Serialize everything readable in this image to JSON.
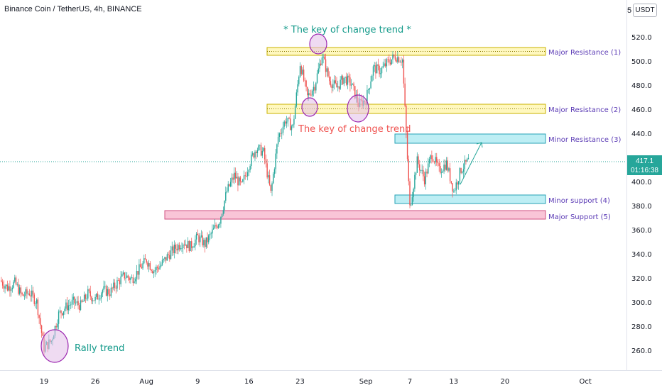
{
  "header": {
    "symbol_title": "Binance Coin / TetherUS, 4h, BINANCE",
    "currency": "USDT",
    "scale_fragment": "5"
  },
  "last_price": {
    "value": "417.1",
    "countdown": "01:16:38",
    "color": "#26a69a"
  },
  "colors": {
    "up": "#26a69a",
    "down": "#ef5350",
    "resistance_fill": "#fff59d",
    "resistance_border": "#c9b200",
    "minor_fill": "#b2ebf2",
    "minor_border": "#26a2b6",
    "support_fill": "#f8bbd0",
    "support_border": "#d05080",
    "level_label": "#5b3bb5",
    "annotation_teal": "#139a8a",
    "annotation_red": "#ef5350",
    "circle_stroke": "#9c27b0",
    "circle_fill": "#e1bee7"
  },
  "chart_data": {
    "type": "candlestick",
    "title": "Binance Coin / TetherUS, 4h, BINANCE",
    "x_tick_labels": [
      "19",
      "26",
      "Aug",
      "9",
      "16",
      "23",
      "Sep",
      "7",
      "13",
      "20",
      "Oct"
    ],
    "y_tick_labels": [
      "520.0",
      "500.0",
      "480.0",
      "460.0",
      "440.0",
      "420.0",
      "400.0",
      "380.0",
      "360.0",
      "340.0",
      "320.0",
      "300.0",
      "280.0",
      "260.0"
    ],
    "ylim": [
      248,
      550
    ],
    "grid": false,
    "price_path": [
      [
        "07-13",
        318
      ],
      [
        "07-14",
        312
      ],
      [
        "07-15",
        316
      ],
      [
        "07-16",
        305
      ],
      [
        "07-17",
        308
      ],
      [
        "07-18",
        300
      ],
      [
        "07-19",
        262
      ],
      [
        "07-20",
        268
      ],
      [
        "07-21",
        290
      ],
      [
        "07-22",
        296
      ],
      [
        "07-23",
        300
      ],
      [
        "07-24",
        297
      ],
      [
        "07-25",
        307
      ],
      [
        "07-26",
        302
      ],
      [
        "07-27",
        310
      ],
      [
        "07-28",
        308
      ],
      [
        "07-29",
        316
      ],
      [
        "07-30",
        322
      ],
      [
        "07-31",
        319
      ],
      [
        "08-01",
        327
      ],
      [
        "08-02",
        335
      ],
      [
        "08-03",
        326
      ],
      [
        "08-04",
        331
      ],
      [
        "08-05",
        339
      ],
      [
        "08-06",
        345
      ],
      [
        "08-07",
        350
      ],
      [
        "08-08",
        346
      ],
      [
        "08-09",
        354
      ],
      [
        "08-10",
        348
      ],
      [
        "08-11",
        358
      ],
      [
        "08-12",
        368
      ],
      [
        "08-13",
        392
      ],
      [
        "08-14",
        405
      ],
      [
        "08-15",
        396
      ],
      [
        "08-16",
        414
      ],
      [
        "08-17",
        428
      ],
      [
        "08-18",
        424
      ],
      [
        "08-19",
        390
      ],
      [
        "08-20",
        437
      ],
      [
        "08-21",
        451
      ],
      [
        "08-22",
        445
      ],
      [
        "08-23",
        498
      ],
      [
        "08-24",
        470
      ],
      [
        "08-25",
        480
      ],
      [
        "08-26",
        505
      ],
      [
        "08-27",
        484
      ],
      [
        "08-28",
        478
      ],
      [
        "08-29",
        486
      ],
      [
        "08-30",
        481
      ],
      [
        "08-31",
        464
      ],
      [
        "09-01",
        468
      ],
      [
        "09-02",
        494
      ],
      [
        "09-03",
        492
      ],
      [
        "09-04",
        499
      ],
      [
        "09-05",
        504
      ],
      [
        "09-06",
        501
      ],
      [
        "09-07",
        378
      ],
      [
        "09-08",
        417
      ],
      [
        "09-09",
        402
      ],
      [
        "09-10",
        423
      ],
      [
        "09-11",
        409
      ],
      [
        "09-12",
        415
      ],
      [
        "09-13",
        392
      ],
      [
        "09-14",
        410
      ],
      [
        "09-15",
        417.1
      ]
    ],
    "levels": [
      {
        "name": "Major Resistance (1)",
        "from": 505,
        "to": 512
      },
      {
        "name": "Major Resistance (2)",
        "from": 458,
        "to": 466
      },
      {
        "name": "Minor Resistance (3)",
        "from": 432,
        "to": 440
      },
      {
        "name": "Minor support (4)",
        "from": 382,
        "to": 390
      },
      {
        "name": "Major Support (5)",
        "from": 368,
        "to": 376
      }
    ],
    "annotations": [
      {
        "text": "* The key of change trend *",
        "color": "teal"
      },
      {
        "text": "The key of change trend",
        "color": "red"
      },
      {
        "text": "Rally trend",
        "color": "teal"
      }
    ],
    "current_price": 417.1
  }
}
